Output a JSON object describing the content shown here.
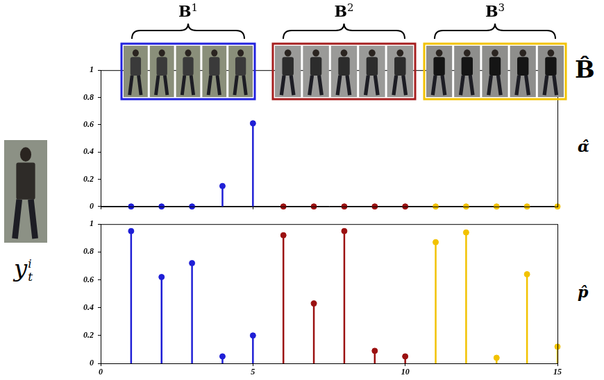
{
  "chart_data": [
    {
      "type": "stem",
      "label": "α̂",
      "xlim": [
        0,
        15
      ],
      "xticks": [
        0,
        5,
        10,
        15
      ],
      "ylim": [
        0,
        1
      ],
      "yticks": [
        0,
        0.2,
        0.4,
        0.6,
        0.8,
        1
      ],
      "tick_labels": "y",
      "marker": "circle",
      "series": [
        {
          "color": "#1f1fd6",
          "x": [
            1,
            2,
            3,
            4,
            5
          ],
          "values": [
            0,
            0,
            0,
            0.15,
            0.61
          ]
        },
        {
          "color": "#9b1111",
          "x": [
            6,
            7,
            8,
            9,
            10
          ],
          "values": [
            0,
            0,
            0,
            0,
            0
          ]
        },
        {
          "color": "#f2c200",
          "x": [
            11,
            12,
            13,
            14,
            15
          ],
          "values": [
            0,
            0,
            0,
            0,
            0
          ]
        }
      ]
    },
    {
      "type": "stem",
      "label": "p̂",
      "xlim": [
        0,
        15
      ],
      "xticks": [
        0,
        5,
        10,
        15
      ],
      "ylim": [
        0,
        1
      ],
      "yticks": [
        0,
        0.2,
        0.4,
        0.6,
        0.8,
        1
      ],
      "marker": "circle",
      "series": [
        {
          "color": "#1f1fd6",
          "x": [
            1,
            2,
            3,
            4,
            5
          ],
          "values": [
            0.95,
            0.62,
            0.72,
            0.05,
            0.2
          ]
        },
        {
          "color": "#9b1111",
          "x": [
            6,
            7,
            8,
            9,
            10
          ],
          "values": [
            0.92,
            0.43,
            0.95,
            0.09,
            0.05
          ]
        },
        {
          "color": "#f2c200",
          "x": [
            11,
            12,
            13,
            14,
            15
          ],
          "values": [
            0.87,
            0.94,
            0.04,
            0.64,
            0.12
          ]
        }
      ]
    }
  ],
  "dictionary": {
    "label": "B̂",
    "blocks": [
      {
        "label": "B",
        "superscript": "1",
        "color": "#2222dd"
      },
      {
        "label": "B",
        "superscript": "2",
        "color": "#a51e1e"
      },
      {
        "label": "B",
        "superscript": "3",
        "color": "#f2c200"
      }
    ]
  },
  "query": {
    "label": "y",
    "subscript": "t",
    "superscript": "i"
  }
}
